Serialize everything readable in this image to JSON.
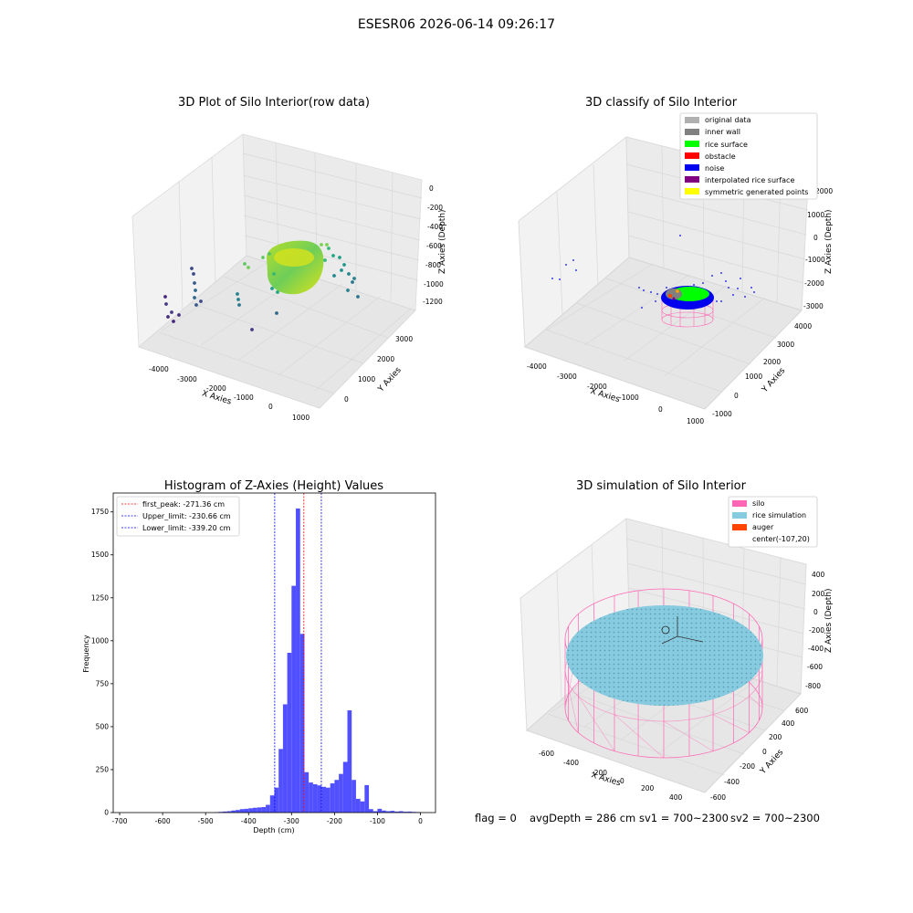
{
  "figure": {
    "suptitle": "ESESR06 2026-06-14 09:26:17",
    "footer": {
      "flag": "flag = 0",
      "avg_depth": "avgDepth = 286 cm",
      "sv1": "sv1 = 700~2300",
      "sv2": "sv2 = 700~2300"
    },
    "colors": {
      "hist_bar": "#5050ff",
      "first_peak_line": "#ff0000",
      "limit_line": "#0000ff",
      "silo": "#ff66b3",
      "rice_simulation": "#87cbe0",
      "auger": "#ff4500",
      "rice_surface": "#00ff00",
      "noise": "#0000ff",
      "obstacle": "#ff0000",
      "inner_wall": "#808080",
      "original_data": "#b0b0b0",
      "interpolated": "#800080",
      "symmetric": "#ffff00"
    }
  },
  "chart_data": [
    {
      "type": "scatter",
      "title": "3D Plot of Silo Interior(row data)",
      "xlabel": "X Axies",
      "ylabel": "Y Axies",
      "zlabel": "Z Axies (Depth)",
      "x_ticks": [
        "-4000",
        "-3000",
        "-2000",
        "-1000",
        "0",
        "1000"
      ],
      "y_ticks": [
        "0",
        "1000",
        "2000",
        "3000"
      ],
      "z_ticks": [
        "0",
        "-200",
        "-400",
        "-600",
        "-800",
        "-1000",
        "-1200"
      ],
      "colormap": "viridis",
      "grid": true
    },
    {
      "type": "scatter",
      "title": "3D classify of Silo Interior",
      "xlabel": "X Axies",
      "ylabel": "Y Axies",
      "zlabel": "Z Axies (Depth)",
      "x_ticks": [
        "-4000",
        "-3000",
        "-2000",
        "-1000",
        "0",
        "1000"
      ],
      "y_ticks": [
        "-1000",
        "0",
        "1000",
        "2000",
        "3000",
        "4000"
      ],
      "z_ticks": [
        "2000",
        "1000",
        "0",
        "-1000",
        "-2000",
        "-3000"
      ],
      "legend": [
        "original data",
        "inner wall",
        "rice surface",
        "obstacle",
        "noise",
        "interpolated rice surface",
        "symmetric generated points"
      ],
      "legend_position": "top-right",
      "grid": true
    },
    {
      "type": "bar",
      "title": "Histogram of Z-Axies (Height) Values",
      "xlabel": "Depth (cm)",
      "ylabel": "Frequency",
      "xlim": [
        -715,
        35
      ],
      "ylim": [
        0,
        1860
      ],
      "x_ticks": [
        -700,
        -600,
        -500,
        -400,
        -300,
        -200,
        -100,
        0
      ],
      "y_ticks": [
        0,
        250,
        500,
        750,
        1000,
        1250,
        1500,
        1750
      ],
      "bin_width": 10,
      "bins": [
        {
          "x": -480,
          "value": 2
        },
        {
          "x": -470,
          "value": 4
        },
        {
          "x": -460,
          "value": 6
        },
        {
          "x": -450,
          "value": 8
        },
        {
          "x": -440,
          "value": 12
        },
        {
          "x": -430,
          "value": 15
        },
        {
          "x": -420,
          "value": 20
        },
        {
          "x": -410,
          "value": 22
        },
        {
          "x": -400,
          "value": 25
        },
        {
          "x": -390,
          "value": 28
        },
        {
          "x": -380,
          "value": 30
        },
        {
          "x": -370,
          "value": 32
        },
        {
          "x": -360,
          "value": 45
        },
        {
          "x": -350,
          "value": 100
        },
        {
          "x": -340,
          "value": 145
        },
        {
          "x": -330,
          "value": 370
        },
        {
          "x": -320,
          "value": 630
        },
        {
          "x": -310,
          "value": 930
        },
        {
          "x": -300,
          "value": 1320
        },
        {
          "x": -290,
          "value": 1770
        },
        {
          "x": -280,
          "value": 1040
        },
        {
          "x": -270,
          "value": 235
        },
        {
          "x": -260,
          "value": 175
        },
        {
          "x": -250,
          "value": 165
        },
        {
          "x": -240,
          "value": 158
        },
        {
          "x": -230,
          "value": 150
        },
        {
          "x": -220,
          "value": 145
        },
        {
          "x": -210,
          "value": 170
        },
        {
          "x": -200,
          "value": 190
        },
        {
          "x": -190,
          "value": 225
        },
        {
          "x": -180,
          "value": 295
        },
        {
          "x": -170,
          "value": 595
        },
        {
          "x": -160,
          "value": 190
        },
        {
          "x": -150,
          "value": 80
        },
        {
          "x": -140,
          "value": 65
        },
        {
          "x": -130,
          "value": 160
        },
        {
          "x": -120,
          "value": 20
        },
        {
          "x": -110,
          "value": 8
        },
        {
          "x": -100,
          "value": 22
        },
        {
          "x": -90,
          "value": 12
        },
        {
          "x": -80,
          "value": 8
        },
        {
          "x": -70,
          "value": 10
        },
        {
          "x": -60,
          "value": 6
        },
        {
          "x": -50,
          "value": 8
        },
        {
          "x": -40,
          "value": 5
        },
        {
          "x": -30,
          "value": 6
        },
        {
          "x": -20,
          "value": 4
        },
        {
          "x": -10,
          "value": 3
        }
      ],
      "vlines": [
        {
          "label": "first_peak: -271.36 cm",
          "x": -271.36,
          "style": "dashed",
          "color": "#ff0000"
        },
        {
          "label": "Upper_limit: -230.66 cm",
          "x": -230.66,
          "style": "dashed",
          "color": "#0000ff"
        },
        {
          "label": "Lower_limit: -339.20 cm",
          "x": -339.2,
          "style": "dashed",
          "color": "#0000ff"
        }
      ],
      "legend_position": "top-left",
      "grid": false
    },
    {
      "type": "scatter",
      "title": "3D simulation of Silo Interior",
      "xlabel": "X Axies",
      "ylabel": "Y Axies",
      "zlabel": "Z Axies (Depth)",
      "x_ticks": [
        "-600",
        "-400",
        "-200",
        "0",
        "200",
        "400"
      ],
      "y_ticks": [
        "-600",
        "-400",
        "-200",
        "0",
        "200",
        "400",
        "600"
      ],
      "z_ticks": [
        "400",
        "200",
        "0",
        "-200",
        "-400",
        "-600",
        "-800"
      ],
      "legend": [
        "silo",
        "rice simulation",
        "auger",
        "center(-107,20)"
      ],
      "legend_position": "top-right",
      "grid": true
    }
  ]
}
